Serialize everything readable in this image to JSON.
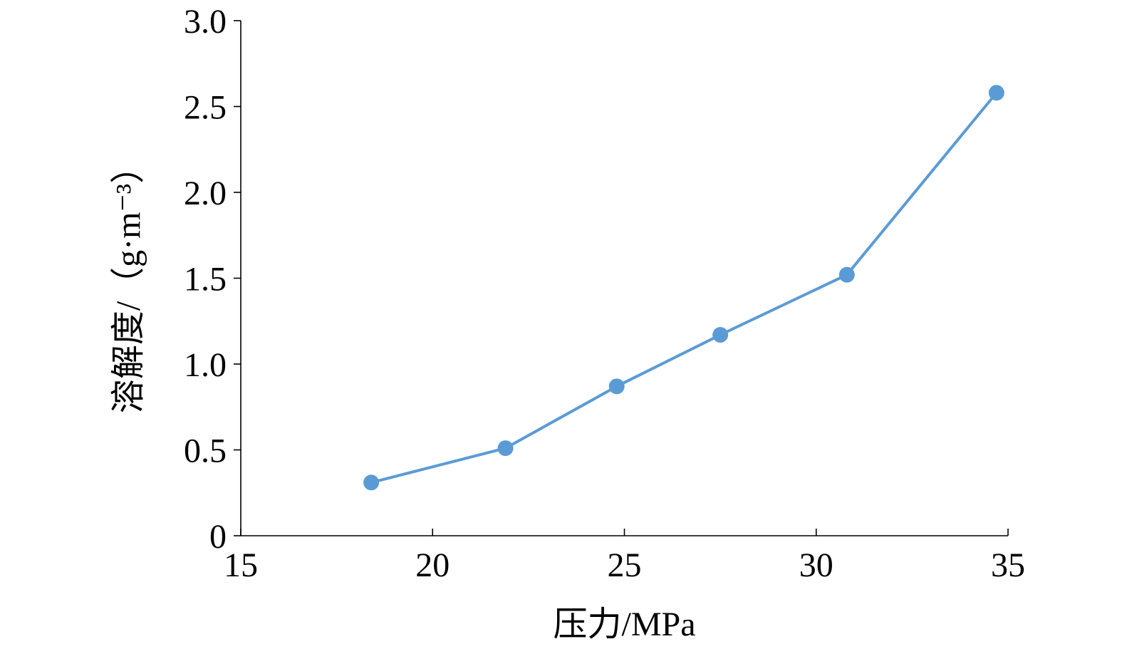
{
  "chart_data": {
    "type": "line",
    "title": "",
    "xlabel": "压力/MPa",
    "ylabel": "溶解度/（g·m⁻³）",
    "xlim": [
      15,
      35
    ],
    "ylim": [
      0,
      3.0
    ],
    "x_ticks": [
      "15",
      "20",
      "25",
      "30",
      "35"
    ],
    "y_ticks": [
      "0",
      "0.5",
      "1.0",
      "1.5",
      "2.0",
      "2.5",
      "3.0"
    ],
    "grid": false,
    "legend": "none",
    "series": [
      {
        "color": "#5b9bd5",
        "x": [
          18.4,
          21.9,
          24.8,
          27.5,
          30.8,
          34.7
        ],
        "y": [
          0.31,
          0.51,
          0.87,
          1.17,
          1.52,
          2.58
        ]
      }
    ]
  }
}
